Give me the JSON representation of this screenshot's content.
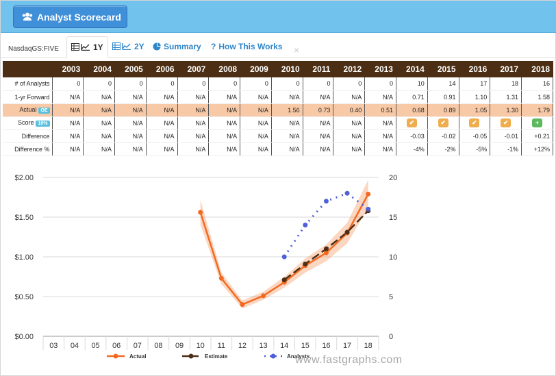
{
  "header": {
    "title": "Analyst Scorecard",
    "title_icon": "users-icon"
  },
  "toolbar": {
    "ticker": "NasdaqGS:FIVE",
    "tabs": [
      {
        "label": "1Y",
        "icon": "table-chart-icon",
        "active": true
      },
      {
        "label": "2Y",
        "icon": "table-chart-icon",
        "active": false
      },
      {
        "label": "Summary",
        "icon": "pie-chart-icon",
        "active": false
      },
      {
        "label": "How This Works",
        "icon": "question-icon",
        "active": false
      }
    ],
    "close": "×"
  },
  "table": {
    "years": [
      "2003",
      "2004",
      "2005",
      "2006",
      "2007",
      "2008",
      "2009",
      "2010",
      "2011",
      "2012",
      "2013",
      "2014",
      "2015",
      "2016",
      "2017",
      "2018"
    ],
    "rows": [
      {
        "label": "# of Analysts",
        "values": [
          "0",
          "0",
          "0",
          "0",
          "0",
          "0",
          "0",
          "0",
          "0",
          "0",
          "0",
          "10",
          "14",
          "17",
          "18",
          "16"
        ]
      },
      {
        "label": "1-yr Forward",
        "values": [
          "N/A",
          "N/A",
          "N/A",
          "N/A",
          "N/A",
          "N/A",
          "N/A",
          "N/A",
          "N/A",
          "N/A",
          "N/A",
          "0.71",
          "0.91",
          "1.10",
          "1.31",
          "1.58"
        ]
      },
      {
        "label": "Actual",
        "badge": "OE",
        "values": [
          "N/A",
          "N/A",
          "N/A",
          "N/A",
          "N/A",
          "N/A",
          "N/A",
          "1.56",
          "0.73",
          "0.40",
          "0.51",
          "0.68",
          "0.89",
          "1.05",
          "1.30",
          "1.79"
        ]
      },
      {
        "label": "Score",
        "badge": "10%",
        "values": [
          "N/A",
          "N/A",
          "N/A",
          "N/A",
          "N/A",
          "N/A",
          "N/A",
          "N/A",
          "N/A",
          "N/A",
          "N/A",
          "warn",
          "warn",
          "warn",
          "warn",
          "good"
        ]
      },
      {
        "label": "Difference",
        "values": [
          "N/A",
          "N/A",
          "N/A",
          "N/A",
          "N/A",
          "N/A",
          "N/A",
          "N/A",
          "N/A",
          "N/A",
          "N/A",
          "-0.03",
          "-0.02",
          "-0.05",
          "-0.01",
          "+0.21"
        ]
      },
      {
        "label": "Difference %",
        "values": [
          "N/A",
          "N/A",
          "N/A",
          "N/A",
          "N/A",
          "N/A",
          "N/A",
          "N/A",
          "N/A",
          "N/A",
          "N/A",
          "-4%",
          "-2%",
          "-5%",
          "-1%",
          "+12%"
        ]
      }
    ]
  },
  "chart_data": {
    "type": "line",
    "categories": [
      "03",
      "04",
      "05",
      "06",
      "07",
      "08",
      "09",
      "10",
      "11",
      "12",
      "13",
      "14",
      "15",
      "16",
      "17",
      "18"
    ],
    "ylim": [
      0,
      2.0
    ],
    "yticks": [
      "$0.00",
      "$0.50",
      "$1.00",
      "$1.50",
      "$2.00"
    ],
    "y2lim": [
      0,
      20
    ],
    "y2ticks": [
      "0",
      "5",
      "10",
      "15",
      "20"
    ],
    "grid": true,
    "legend_position": "bottom",
    "series": [
      {
        "name": "Actual",
        "axis": "left",
        "color": "#f26a22",
        "values": [
          null,
          null,
          null,
          null,
          null,
          null,
          null,
          1.56,
          0.73,
          0.4,
          0.51,
          0.68,
          0.89,
          1.05,
          1.3,
          1.79
        ]
      },
      {
        "name": "Estimate",
        "axis": "left",
        "color": "#4b2e13",
        "values": [
          null,
          null,
          null,
          null,
          null,
          null,
          null,
          null,
          null,
          null,
          null,
          0.71,
          0.91,
          1.1,
          1.31,
          1.58
        ]
      },
      {
        "name": "Analysts",
        "axis": "right",
        "color": "#4f5fd8",
        "values": [
          null,
          null,
          null,
          null,
          null,
          null,
          null,
          null,
          null,
          null,
          null,
          10,
          14,
          17,
          18,
          16
        ]
      }
    ]
  },
  "watermark": "www.fastgraphs.com"
}
